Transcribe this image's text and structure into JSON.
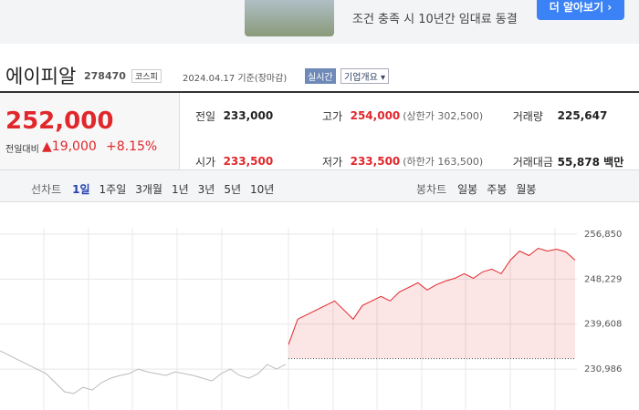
{
  "banner": {
    "text": "조건 충족 시 10년간 임대료 동결",
    "button": "더 알아보기 ›"
  },
  "header": {
    "name": "에이피알",
    "code": "278470",
    "market": "코스피",
    "date": "2024.04.17 기준(장마감)",
    "realtime": "실시간",
    "company": "기업개요 ▾"
  },
  "quote": {
    "price": "252,000",
    "change_label": "전일대비",
    "change": "19,000",
    "rate": "+8.15%",
    "rows": [
      [
        [
          "전일",
          "233,000",
          null
        ],
        [
          "고가",
          "254,000",
          "(상한가 302,500)"
        ],
        [
          "거래량",
          "225,647",
          null
        ]
      ],
      [
        [
          "시가",
          "233,500",
          null
        ],
        [
          "저가",
          "233,500",
          "(하한가 163,500)"
        ],
        [
          "거래대금",
          "55,878 백만",
          null
        ]
      ]
    ]
  },
  "tabs": {
    "line_label": "선차트",
    "line": [
      "1일",
      "1주일",
      "3개월",
      "1년",
      "3년",
      "5년",
      "10년"
    ],
    "candle_label": "봉차트",
    "candle": [
      "일봉",
      "주봉",
      "월봉"
    ]
  },
  "chart_data": {
    "type": "line",
    "ylim": [
      223150,
      261900
    ],
    "yticks": [
      {
        "value": 256850,
        "label": "256,850"
      },
      {
        "value": 248229,
        "label": "248,229"
      },
      {
        "value": 239608,
        "label": "239,608"
      },
      {
        "value": 230986,
        "label": "230,986"
      }
    ],
    "baseline": 233000,
    "series": [
      {
        "color": "#bbbbbb",
        "values": [
          234470,
          233600,
          232730,
          231860,
          230990,
          230120,
          228380,
          226640,
          226290,
          227500,
          226980,
          228380,
          229250,
          229770,
          230120,
          230990,
          230460,
          230120,
          229770,
          230460,
          230120,
          229770,
          229250,
          228720,
          230120,
          230990,
          229770,
          229250,
          230120,
          231860,
          230990,
          231860
        ]
      },
      {
        "color": "#e0272c",
        "values": [
          235690,
          240560,
          241430,
          242300,
          243170,
          244040,
          242300,
          240560,
          243170,
          244040,
          244910,
          244040,
          245780,
          246650,
          247520,
          246130,
          247170,
          247860,
          248390,
          249260,
          248390,
          249610,
          250130,
          249260,
          251870,
          253610,
          252740,
          254130,
          253610,
          253960,
          253440,
          251870
        ]
      }
    ]
  }
}
